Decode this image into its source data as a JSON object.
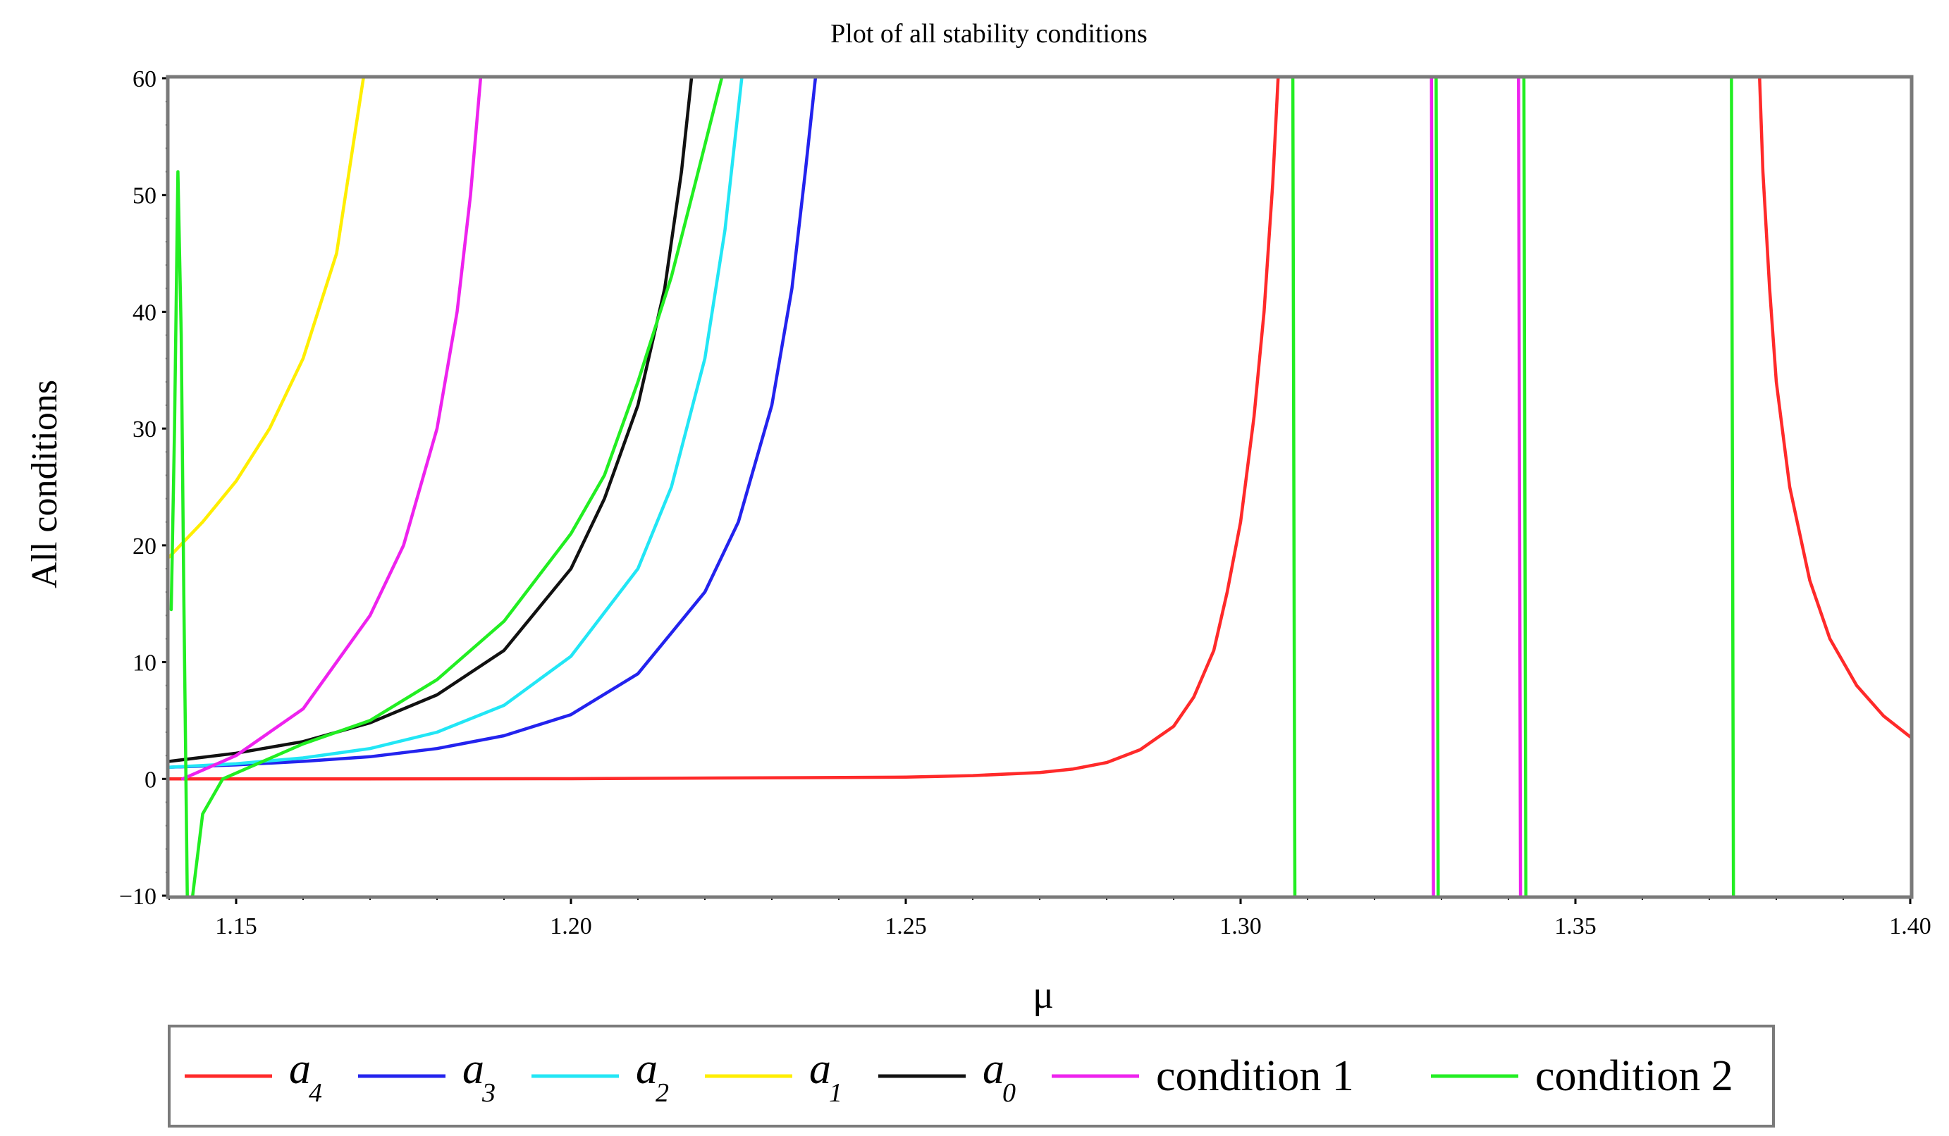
{
  "chart_data": {
    "type": "line",
    "title": "Plot of all stability conditions",
    "xlabel": "μ",
    "ylabel": "All conditions",
    "xlim": [
      1.14,
      1.4
    ],
    "ylim": [
      -10,
      60
    ],
    "xticks": [
      1.15,
      1.2,
      1.25,
      1.3,
      1.35,
      1.4
    ],
    "xtick_labels": [
      "1.15",
      "1.20",
      "1.25",
      "1.30",
      "1.35",
      "1.40"
    ],
    "yticks": [
      -10,
      0,
      10,
      20,
      30,
      40,
      50,
      60
    ],
    "ytick_labels": [
      "−10",
      "0",
      "10",
      "20",
      "30",
      "40",
      "50",
      "60"
    ],
    "grid": false,
    "legend_position": "bottom",
    "series": [
      {
        "name": "a4",
        "legend_symbol": "a",
        "legend_subscript": "4",
        "color": "#ff2a2a",
        "segments": [
          [
            [
              1.14,
              0.0
            ],
            [
              1.15,
              0.0
            ],
            [
              1.2,
              0.02
            ],
            [
              1.25,
              0.15
            ],
            [
              1.26,
              0.28
            ],
            [
              1.27,
              0.55
            ],
            [
              1.275,
              0.85
            ],
            [
              1.28,
              1.4
            ],
            [
              1.285,
              2.5
            ],
            [
              1.29,
              4.5
            ],
            [
              1.293,
              7
            ],
            [
              1.296,
              11
            ],
            [
              1.298,
              16
            ],
            [
              1.3,
              22
            ],
            [
              1.302,
              31
            ],
            [
              1.3035,
              40
            ],
            [
              1.3048,
              51
            ],
            [
              1.3056,
              60
            ]
          ],
          [
            [
              1.3775,
              60
            ],
            [
              1.378,
              52
            ],
            [
              1.379,
              42
            ],
            [
              1.38,
              34
            ],
            [
              1.382,
              25
            ],
            [
              1.385,
              17
            ],
            [
              1.388,
              12
            ],
            [
              1.392,
              8
            ],
            [
              1.396,
              5.4
            ],
            [
              1.4,
              3.6
            ]
          ]
        ]
      },
      {
        "name": "a3",
        "legend_symbol": "a",
        "legend_subscript": "3",
        "color": "#2323ee",
        "segments": [
          [
            [
              1.14,
              1.0
            ],
            [
              1.15,
              1.2
            ],
            [
              1.16,
              1.5
            ],
            [
              1.17,
              1.9
            ],
            [
              1.18,
              2.6
            ],
            [
              1.19,
              3.7
            ],
            [
              1.2,
              5.5
            ],
            [
              1.21,
              9
            ],
            [
              1.22,
              16
            ],
            [
              1.225,
              22
            ],
            [
              1.23,
              32
            ],
            [
              1.233,
              42
            ],
            [
              1.235,
              52
            ],
            [
              1.2365,
              60
            ]
          ]
        ]
      },
      {
        "name": "a2",
        "legend_symbol": "a",
        "legend_subscript": "2",
        "color": "#22e6f5",
        "segments": [
          [
            [
              1.14,
              1.0
            ],
            [
              1.15,
              1.3
            ],
            [
              1.16,
              1.8
            ],
            [
              1.17,
              2.6
            ],
            [
              1.18,
              4.0
            ],
            [
              1.19,
              6.3
            ],
            [
              1.2,
              10.5
            ],
            [
              1.21,
              18
            ],
            [
              1.215,
              25
            ],
            [
              1.22,
              36
            ],
            [
              1.223,
              47
            ],
            [
              1.2255,
              60
            ]
          ]
        ]
      },
      {
        "name": "a1",
        "legend_symbol": "a",
        "legend_subscript": "1",
        "color": "#ffee00",
        "segments": [
          [
            [
              1.14,
              19
            ],
            [
              1.145,
              22
            ],
            [
              1.15,
              25.5
            ],
            [
              1.155,
              30
            ],
            [
              1.16,
              36
            ],
            [
              1.165,
              45
            ],
            [
              1.169,
              60
            ]
          ]
        ]
      },
      {
        "name": "a0",
        "legend_symbol": "a",
        "legend_subscript": "0",
        "color": "#111111",
        "segments": [
          [
            [
              1.14,
              1.5
            ],
            [
              1.15,
              2.2
            ],
            [
              1.16,
              3.2
            ],
            [
              1.17,
              4.8
            ],
            [
              1.18,
              7.2
            ],
            [
              1.19,
              11
            ],
            [
              1.2,
              18
            ],
            [
              1.205,
              24
            ],
            [
              1.21,
              32
            ],
            [
              1.214,
              42
            ],
            [
              1.2165,
              52
            ],
            [
              1.218,
              60
            ]
          ]
        ]
      },
      {
        "name": "condition 1",
        "legend_symbol": "",
        "legend_subscript": "",
        "color": "#ee22ee",
        "segments": [
          [
            [
              1.142,
              0
            ],
            [
              1.15,
              2
            ],
            [
              1.16,
              6
            ],
            [
              1.17,
              14
            ],
            [
              1.175,
              20
            ],
            [
              1.18,
              30
            ],
            [
              1.183,
              40
            ],
            [
              1.185,
              50
            ],
            [
              1.1865,
              60
            ]
          ],
          [
            [
              1.3285,
              60
            ],
            [
              1.3288,
              -10
            ]
          ],
          [
            [
              1.3415,
              60
            ],
            [
              1.3418,
              -10
            ]
          ]
        ]
      },
      {
        "name": "condition 2",
        "legend_symbol": "",
        "legend_subscript": "",
        "color": "#22ee22",
        "segments": [
          [
            [
              1.1403,
              14.5
            ],
            [
              1.1408,
              30
            ],
            [
              1.1413,
              52
            ],
            [
              1.1418,
              38
            ],
            [
              1.1422,
              15
            ],
            [
              1.1427,
              -10
            ]
          ],
          [
            [
              1.1435,
              -10
            ],
            [
              1.145,
              -3
            ],
            [
              1.148,
              0
            ],
            [
              1.152,
              1
            ],
            [
              1.16,
              3
            ],
            [
              1.17,
              5
            ],
            [
              1.18,
              8.5
            ],
            [
              1.19,
              13.5
            ],
            [
              1.2,
              21
            ],
            [
              1.205,
              26
            ],
            [
              1.21,
              34
            ],
            [
              1.215,
              43
            ],
            [
              1.219,
              52
            ],
            [
              1.2225,
              60
            ]
          ],
          [
            [
              1.3078,
              60
            ],
            [
              1.3081,
              -10
            ]
          ],
          [
            [
              1.3292,
              60
            ],
            [
              1.3295,
              -10
            ]
          ],
          [
            [
              1.3423,
              60
            ],
            [
              1.3426,
              -10
            ]
          ],
          [
            [
              1.3733,
              60
            ],
            [
              1.3736,
              -10
            ]
          ]
        ]
      }
    ]
  }
}
